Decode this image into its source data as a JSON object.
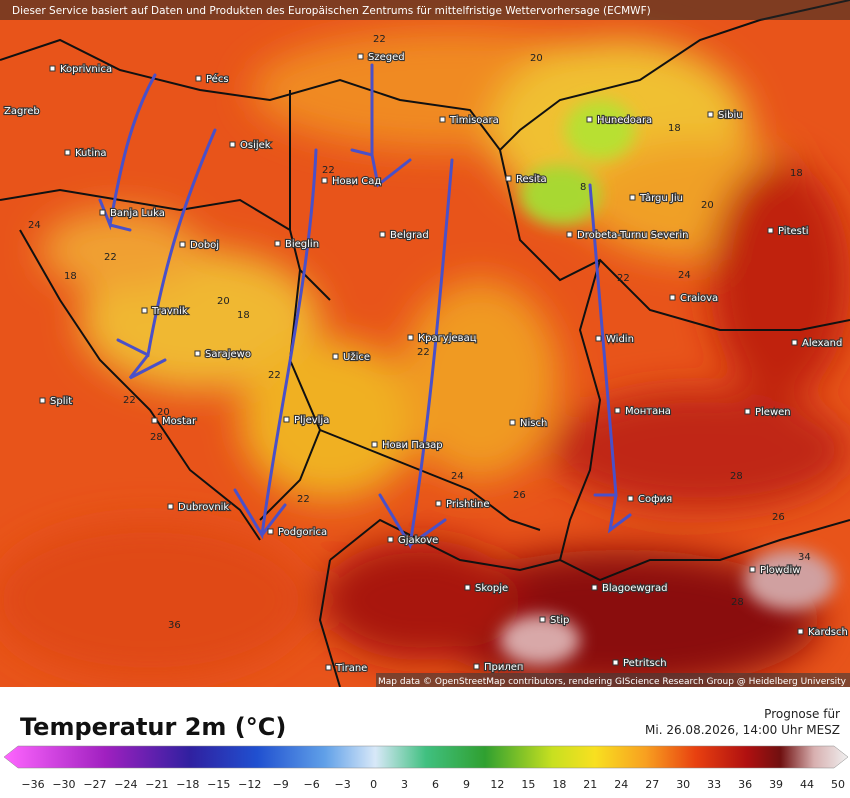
{
  "header": {
    "attribution": "Dieser Service basiert auf Daten und Produkten des Europäischen Zentrums für mittelfristige Wettervorhersage (ECMWF)"
  },
  "map": {
    "cities": [
      "Koprivnica",
      "Pécs",
      "Szeged",
      "Zagreb",
      "Kutina",
      "Osijek",
      "Timisoara",
      "Hunedoara",
      "Sibiu",
      "Нови Сад",
      "Resita",
      "Târgu Jiu",
      "Banja Luka",
      "Doboj",
      "Bieglin",
      "Belgrad",
      "Drobeta-Turnu Severin",
      "Pitesti",
      "Craiova",
      "Travnik",
      "Sarajewo",
      "Užice",
      "Крагујевац",
      "Widin",
      "Alexand",
      "Plewen",
      "Монтана",
      "Split",
      "Mostar",
      "Pljevlja",
      "Нови Пазар",
      "Nisch",
      "Prishtine",
      "София",
      "Dubrovnik",
      "Podgorica",
      "Gjakove",
      "Skopje",
      "Blagoewgrad",
      "Plowdiw",
      "Stip",
      "Tirane",
      "Прилеп",
      "Petritsch",
      "Kardsch"
    ],
    "isotherm_labels": [
      22,
      20,
      18,
      18,
      20,
      22,
      24,
      24,
      22,
      18,
      20,
      18,
      22,
      22,
      22,
      22,
      20,
      28,
      24,
      26,
      22,
      28,
      26,
      34,
      36,
      28,
      8
    ],
    "attribution": "Map data © OpenStreetMap contributors, rendering GIScience Research Group @ Heidelberg University"
  },
  "legend": {
    "title": "Temperatur 2m (°C)",
    "ticks": [
      "−36",
      "−30",
      "−27",
      "−24",
      "−21",
      "−18",
      "−15",
      "−12",
      "−9",
      "−6",
      "−3",
      "0",
      "3",
      "6",
      "9",
      "12",
      "15",
      "18",
      "21",
      "24",
      "27",
      "30",
      "33",
      "36",
      "39",
      "44",
      "50"
    ]
  },
  "forecast": {
    "label": "Prognose für",
    "time": "Mi. 26.08.2026, 14:00 Uhr MESZ"
  }
}
